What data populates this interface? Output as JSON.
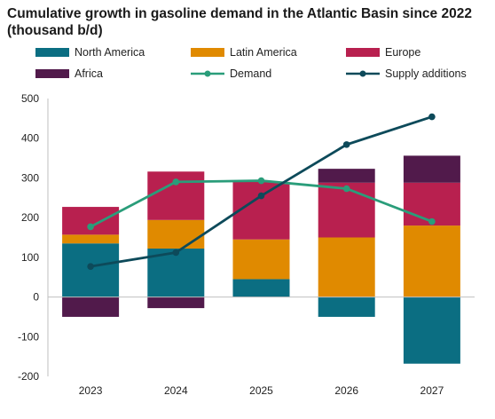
{
  "colors": {
    "north_america": "#0b6e82",
    "latin_america": "#e08a00",
    "europe": "#b8204f",
    "africa": "#511a4b",
    "demand": "#2a9d7a",
    "supply": "#0d4a5a"
  },
  "chart_data": {
    "type": "bar",
    "stacked": true,
    "title": "Cumulative growth in gasoline demand in the Atlantic Basin since 2022 (thousand b/d)",
    "categories": [
      "2023",
      "2024",
      "2025",
      "2026",
      "2027"
    ],
    "series": [
      {
        "name": "North America",
        "type": "bar",
        "values": [
          135,
          122,
          45,
          -50,
          -168
        ]
      },
      {
        "name": "Latin America",
        "type": "bar",
        "values": [
          22,
          72,
          100,
          150,
          180
        ]
      },
      {
        "name": "Europe",
        "type": "bar",
        "values": [
          70,
          122,
          145,
          138,
          108
        ]
      },
      {
        "name": "Africa",
        "type": "bar",
        "values": [
          -50,
          -28,
          0,
          35,
          68
        ]
      },
      {
        "name": "Demand",
        "type": "line",
        "values": [
          177,
          290,
          293,
          273,
          190
        ]
      },
      {
        "name": "Supply additions",
        "type": "line",
        "values": [
          77,
          112,
          255,
          384,
          454
        ]
      }
    ],
    "yticks": [
      "500",
      "400",
      "300",
      "200",
      "100",
      "0",
      "-100",
      "-200"
    ],
    "ylim": [
      -200,
      500
    ],
    "grid": false,
    "legend_position": "top"
  }
}
